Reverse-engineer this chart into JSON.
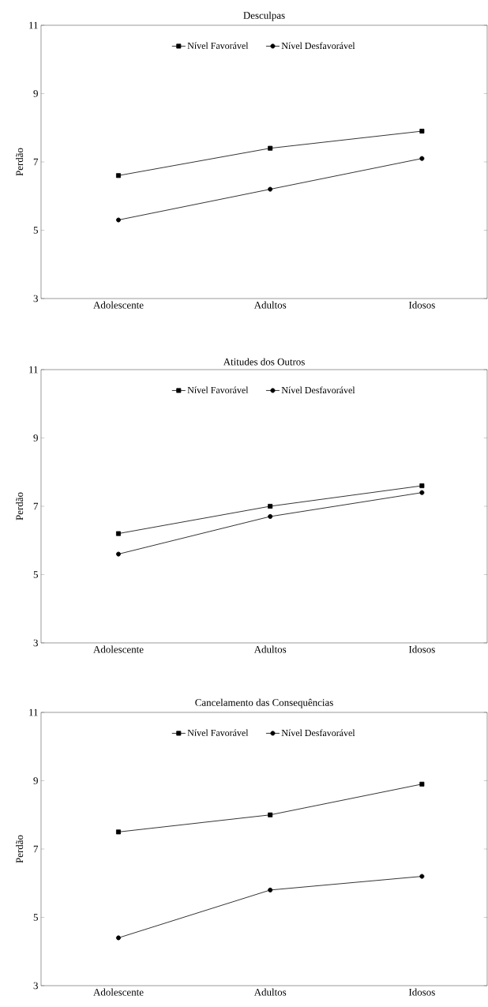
{
  "chart_data": [
    {
      "type": "line",
      "title": "Desculpas",
      "ylabel": "Perdão",
      "categories": [
        "Adolescente",
        "Adultos",
        "Idosos"
      ],
      "ylim": [
        3,
        11
      ],
      "yticks": [
        3,
        5,
        7,
        9,
        11
      ],
      "legend": "top",
      "grid": false,
      "line_style": "solid",
      "series": [
        {
          "name": "Nível Favorável",
          "color": "#000000",
          "marker": "square",
          "values": [
            6.6,
            7.4,
            7.9
          ]
        },
        {
          "name": "Nível Desfavorável",
          "color": "#000000",
          "marker": "circle",
          "values": [
            5.3,
            6.2,
            7.1
          ]
        }
      ]
    },
    {
      "type": "line",
      "title": "Atitudes dos Outros",
      "ylabel": "Perdão",
      "categories": [
        "Adolescente",
        "Adultos",
        "Idosos"
      ],
      "ylim": [
        3,
        11
      ],
      "yticks": [
        3,
        5,
        7,
        9,
        11
      ],
      "legend": "top",
      "grid": false,
      "line_style": "solid",
      "series": [
        {
          "name": "Nível Favorável",
          "color": "#000000",
          "marker": "square",
          "values": [
            6.2,
            7.0,
            7.6
          ]
        },
        {
          "name": "Nível Desfavorável",
          "color": "#000000",
          "marker": "circle",
          "values": [
            5.6,
            6.7,
            7.4
          ]
        }
      ]
    },
    {
      "type": "line",
      "title": "Cancelamento das Consequências",
      "ylabel": "Perdão",
      "categories": [
        "Adolescente",
        "Adultos",
        "Idosos"
      ],
      "ylim": [
        3,
        11
      ],
      "yticks": [
        3,
        5,
        7,
        9,
        11
      ],
      "legend": "top",
      "grid": false,
      "line_style": "solid",
      "series": [
        {
          "name": "Nível Favorável",
          "color": "#000000",
          "marker": "square",
          "values": [
            7.5,
            8.0,
            8.9
          ]
        },
        {
          "name": "Nível Desfavorável",
          "color": "#000000",
          "marker": "circle",
          "values": [
            4.4,
            5.8,
            6.2
          ]
        }
      ]
    }
  ]
}
